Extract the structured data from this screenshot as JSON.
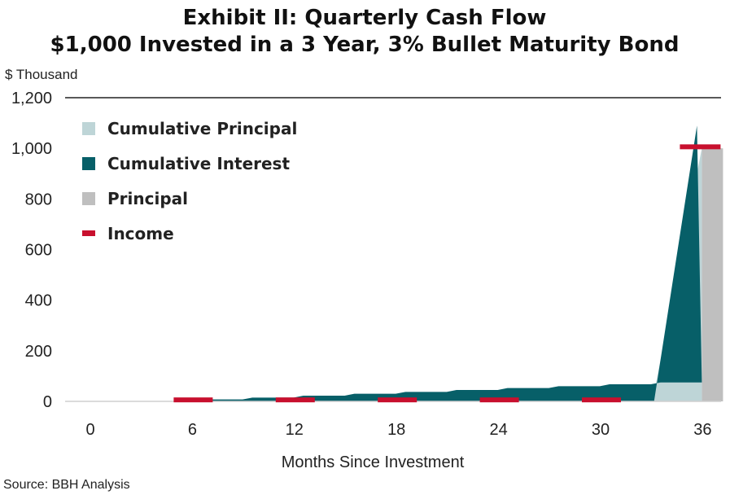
{
  "chart_data": {
    "type": "area",
    "title_line1": "Exhibit II: Quarterly Cash Flow",
    "title_line2": "$1,000 Invested in a 3 Year, 3% Bullet Maturity Bond",
    "unit_label": "$ Thousand",
    "xlabel": "Months Since Investment",
    "source": "Source: BBH Analysis",
    "ylim": [
      0,
      1200
    ],
    "xlim": [
      0,
      36
    ],
    "y_ticks": [
      "0",
      "200",
      "400",
      "600",
      "800",
      "1,000",
      "1,200"
    ],
    "x_ticks": [
      "0",
      "6",
      "12",
      "18",
      "24",
      "30",
      "36"
    ],
    "grid": false,
    "legend_placement": "top-left",
    "colors": {
      "cumulative_principal": "#bed5d7",
      "cumulative_interest": "#075f68",
      "principal": "#bfbfbf",
      "income": "#c8102e"
    },
    "legend": [
      {
        "key": "cumulative_principal",
        "label": "Cumulative Principal"
      },
      {
        "key": "cumulative_interest",
        "label": "Cumulative Interest"
      },
      {
        "key": "principal",
        "label": "Principal"
      },
      {
        "key": "income",
        "label": "Income"
      }
    ],
    "series": [
      {
        "name": "Cumulative Interest",
        "type": "step-area",
        "x": [
          0,
          3,
          6,
          9,
          12,
          15,
          18,
          21,
          24,
          27,
          30,
          33,
          36
        ],
        "values": [
          0,
          0,
          7.5,
          15,
          22.5,
          30,
          37.5,
          45,
          52.5,
          60,
          67.5,
          75,
          1090
        ]
      },
      {
        "name": "Cumulative Principal",
        "type": "area",
        "x": [
          33,
          36
        ],
        "values": [
          0,
          1000
        ]
      },
      {
        "name": "Principal",
        "type": "bar",
        "x": [
          36
        ],
        "values": [
          1000
        ]
      },
      {
        "name": "Income",
        "type": "marker",
        "x": [
          6,
          12,
          18,
          24,
          30,
          36
        ],
        "values": [
          7.5,
          7.5,
          7.5,
          7.5,
          7.5,
          1007.5
        ]
      }
    ]
  }
}
